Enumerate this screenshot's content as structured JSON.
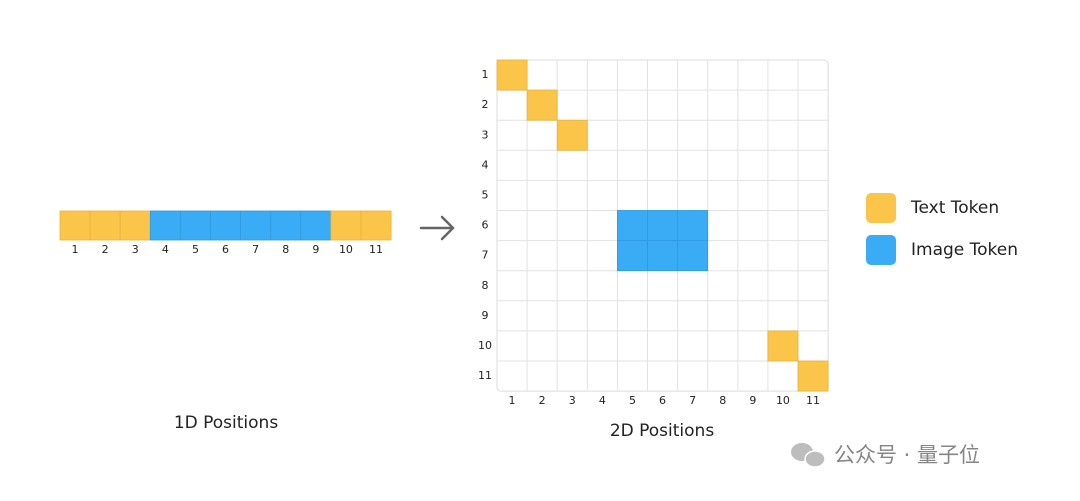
{
  "sequence": {
    "labels": [
      "1",
      "2",
      "3",
      "4",
      "5",
      "6",
      "7",
      "8",
      "9",
      "10",
      "11"
    ],
    "caption": "1D Positions"
  },
  "grid": {
    "row_labels": [
      "1",
      "2",
      "3",
      "4",
      "5",
      "6",
      "7",
      "8",
      "9",
      "10",
      "11"
    ],
    "column_labels": [
      "1",
      "2",
      "3",
      "4",
      "5",
      "6",
      "7",
      "8",
      "9",
      "10",
      "11"
    ],
    "caption": "2D Positions"
  },
  "legend": [
    {
      "label": "Text Token",
      "color": "#fbc54a"
    },
    {
      "label": "Image Token",
      "color": "#3aabf5"
    }
  ],
  "watermark": "公众号 · 量子位"
}
